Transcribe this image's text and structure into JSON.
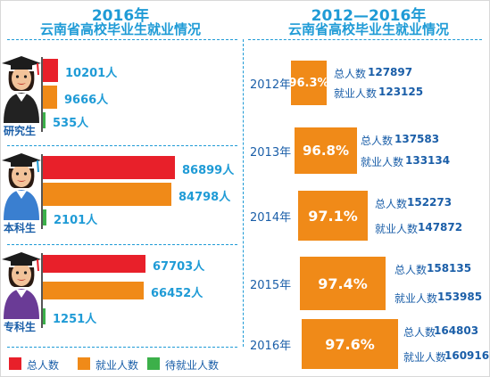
{
  "colors": {
    "total": "#e8202a",
    "employed": "#f08a18",
    "unemployed": "#3cb04a",
    "accent": "#1f9bd6",
    "text": "#1a5ea8"
  },
  "left_title": {
    "line1": "2016年",
    "line2": "云南省高校毕业生就业情况"
  },
  "right_title": {
    "line1": "2012—2016年",
    "line2": "云南省高校毕业生就业情况"
  },
  "legend": [
    {
      "label": "总人数",
      "color": "#e8202a"
    },
    {
      "label": "就业人数",
      "color": "#f08a18"
    },
    {
      "label": "待就业人数",
      "color": "#3cb04a"
    }
  ],
  "icons": [
    "graduate-avatar-icon"
  ],
  "chart_data": [
    {
      "type": "bar",
      "orientation": "horizontal",
      "title": "2016年 云南省高校毕业生就业情况",
      "categories": [
        "研究生",
        "本科生",
        "专科生"
      ],
      "series": [
        {
          "name": "总人数",
          "values": [
            10201,
            86899,
            67703
          ],
          "labels": [
            "10201人",
            "86899人",
            "67703人"
          ]
        },
        {
          "name": "就业人数",
          "values": [
            9666,
            84798,
            66452
          ],
          "labels": [
            "9666人",
            "84798人",
            "66452人"
          ]
        },
        {
          "name": "待就业人数",
          "values": [
            535,
            2101,
            1251
          ],
          "labels": [
            "535人",
            "2101人",
            "1251人"
          ]
        }
      ],
      "legend_position": "bottom"
    },
    {
      "type": "table",
      "title": "2012—2016年 云南省高校毕业生就业情况",
      "years": [
        "2012年",
        "2013年",
        "2014年",
        "2015年",
        "2016年"
      ],
      "rates": [
        "96.3%",
        "96.8%",
        "97.1%",
        "97.4%",
        "97.6%"
      ],
      "rate_values": [
        96.3,
        96.8,
        97.1,
        97.4,
        97.6
      ],
      "total_label": "总人数",
      "employed_label": "就业人数",
      "totals": [
        127897,
        137583,
        152273,
        158135,
        164803
      ],
      "employed": [
        123125,
        133134,
        147872,
        153985,
        160916
      ]
    }
  ]
}
